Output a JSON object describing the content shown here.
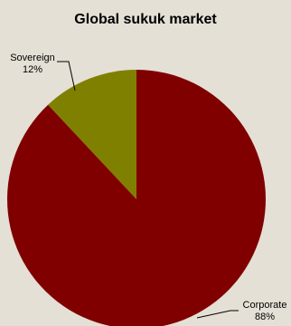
{
  "chart_data": {
    "type": "pie",
    "title": "Global sukuk market",
    "slices": [
      {
        "label": "Corporate",
        "value": 88,
        "value_label": "88%",
        "color": "#800000"
      },
      {
        "label": "Sovereign",
        "value": 12,
        "value_label": "12%",
        "color": "#808000"
      }
    ],
    "legend": "none",
    "background_color": "#e4e0d6"
  }
}
